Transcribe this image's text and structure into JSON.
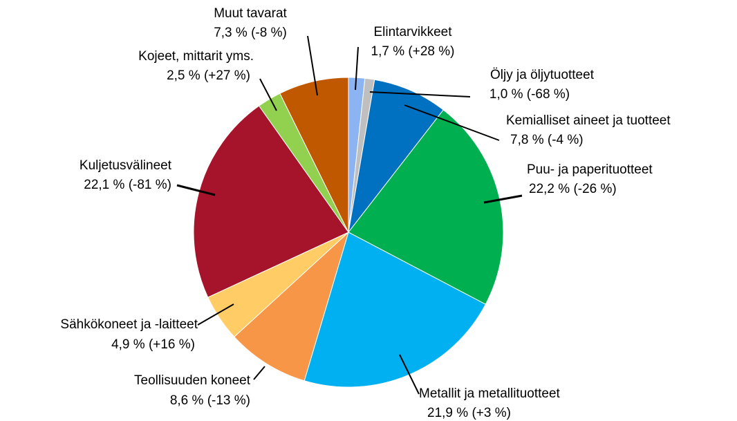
{
  "chart_data": {
    "type": "pie",
    "categories": [
      "Elintarvikkeet",
      "Öljy ja öljytuotteet",
      "Kemialliset aineet ja tuotteet",
      "Puu- ja paperituotteet",
      "Metallit ja metallituotteet",
      "Teollisuuden koneet",
      "Sähkökoneet ja -laitteet",
      "Kuljetusvälineet",
      "Kojeet, mittarit yms.",
      "Muut tavarat"
    ],
    "values": [
      1.7,
      1.0,
      7.8,
      22.2,
      21.9,
      8.6,
      4.9,
      22.1,
      2.5,
      7.3
    ],
    "value_labels": [
      "1,7 %",
      "1,0 %",
      "7,8 %",
      "22,2 %",
      "21,9 %",
      "8,6 %",
      "4,9 %",
      "22,1 %",
      "2,5 %",
      "7,3 %"
    ],
    "changes": [
      28,
      -68,
      -4,
      -26,
      3,
      -13,
      16,
      -81,
      27,
      -8
    ],
    "change_labels": [
      "(+28 %)",
      "(-68 %)",
      "(-4 %)",
      "(-26 %)",
      "(+3 %)",
      "(-13 %)",
      "(+16 %)",
      "(-81 %)",
      "(+27 %)",
      "(-8 %)"
    ],
    "colors": [
      "#8db4f2",
      "#bfbfbf",
      "#0070c0",
      "#00b050",
      "#00b0f0",
      "#f79646",
      "#ffcc66",
      "#a6142b",
      "#92d050",
      "#c05800"
    ]
  }
}
